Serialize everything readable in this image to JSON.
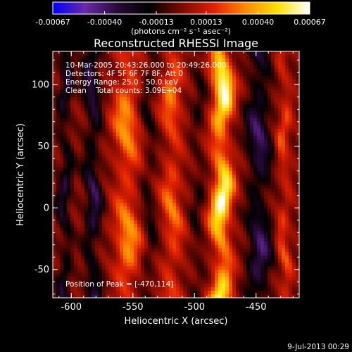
{
  "colorbar": {
    "tick_labels": [
      "-0.00067",
      "-0.00040",
      "-0.00013",
      "0.00013",
      "0.00040",
      "0.00067"
    ],
    "tick_values": [
      -0.00067,
      -0.0004,
      -0.00013,
      0.00013,
      0.0004,
      0.00067
    ],
    "range": [
      -0.00067,
      0.00067
    ],
    "units_label": "(photons cm⁻² s⁻¹ asec⁻²)",
    "colors": [
      "#0000ff",
      "#6a2aa8",
      "#2a0a3a",
      "#000000",
      "#7a0a00",
      "#e02000",
      "#ff8a00",
      "#ffe000",
      "#ffffff"
    ]
  },
  "chart_data": {
    "type": "heatmap",
    "title": "Reconstructed RHESSI Image",
    "xlabel": "Heliocentric X (arcsec)",
    "ylabel": "Heliocentric Y (arcsec)",
    "xlim": [
      -615,
      -415
    ],
    "ylim": [
      -73,
      127
    ],
    "x_tick_values": [
      -600,
      -550,
      -500,
      -450
    ],
    "x_tick_labels": [
      "-600",
      "-550",
      "-500",
      "-450"
    ],
    "y_tick_values": [
      -50,
      0,
      50,
      100
    ],
    "y_tick_labels": [
      "-50",
      "0",
      "50",
      "100"
    ],
    "info_lines": [
      "10-Mar-2005 20:43:26.000 to 20:49:26.000",
      "Detectors: 4F 5F 6F 7F 8F, Att 0",
      "Energy Range: 25.0 - 50.0 keV",
      "Clean    Total counts: 3.09E+04"
    ],
    "peak_label": "Position of Peak = [-470,114]",
    "peak_position": [
      -470,
      114
    ]
  },
  "footer": {
    "date": "9-Jul-2013 00:29"
  }
}
